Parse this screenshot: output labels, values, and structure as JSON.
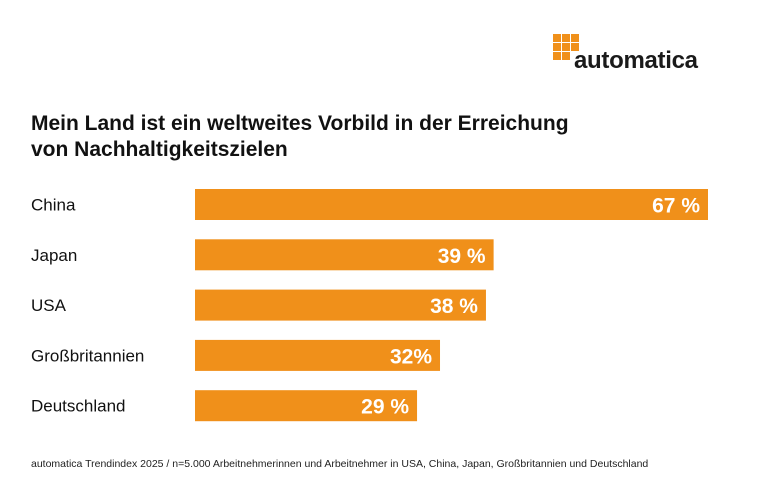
{
  "brand": {
    "logo_text": "automatica",
    "accent_color": "#F0901A"
  },
  "title_lines": [
    "Mein Land ist ein weltweites Vorbild in der Erreichung",
    "von Nachhaltigkeitszielen"
  ],
  "footnote": "automatica Trendindex 2025 / n=5.000 Arbeitnehmerinnen und Arbeitnehmer in USA, China, Japan, Großbritannien und Deutschland",
  "chart_data": {
    "type": "bar",
    "orientation": "horizontal",
    "title": "Mein Land ist ein weltweites Vorbild in der Erreichung von Nachhaltigkeitszielen",
    "categories": [
      "China",
      "Japan",
      "USA",
      "Großbritannien",
      "Deutschland"
    ],
    "values": [
      67,
      39,
      38,
      32,
      29
    ],
    "labels": [
      "67 %",
      "39 %",
      "38 %",
      "32%",
      "29 %"
    ],
    "unit": "%",
    "xlabel": "",
    "ylabel": "",
    "xlim": [
      0,
      67
    ],
    "grid": false,
    "legend": "none",
    "bar_color": "#F0901A"
  }
}
